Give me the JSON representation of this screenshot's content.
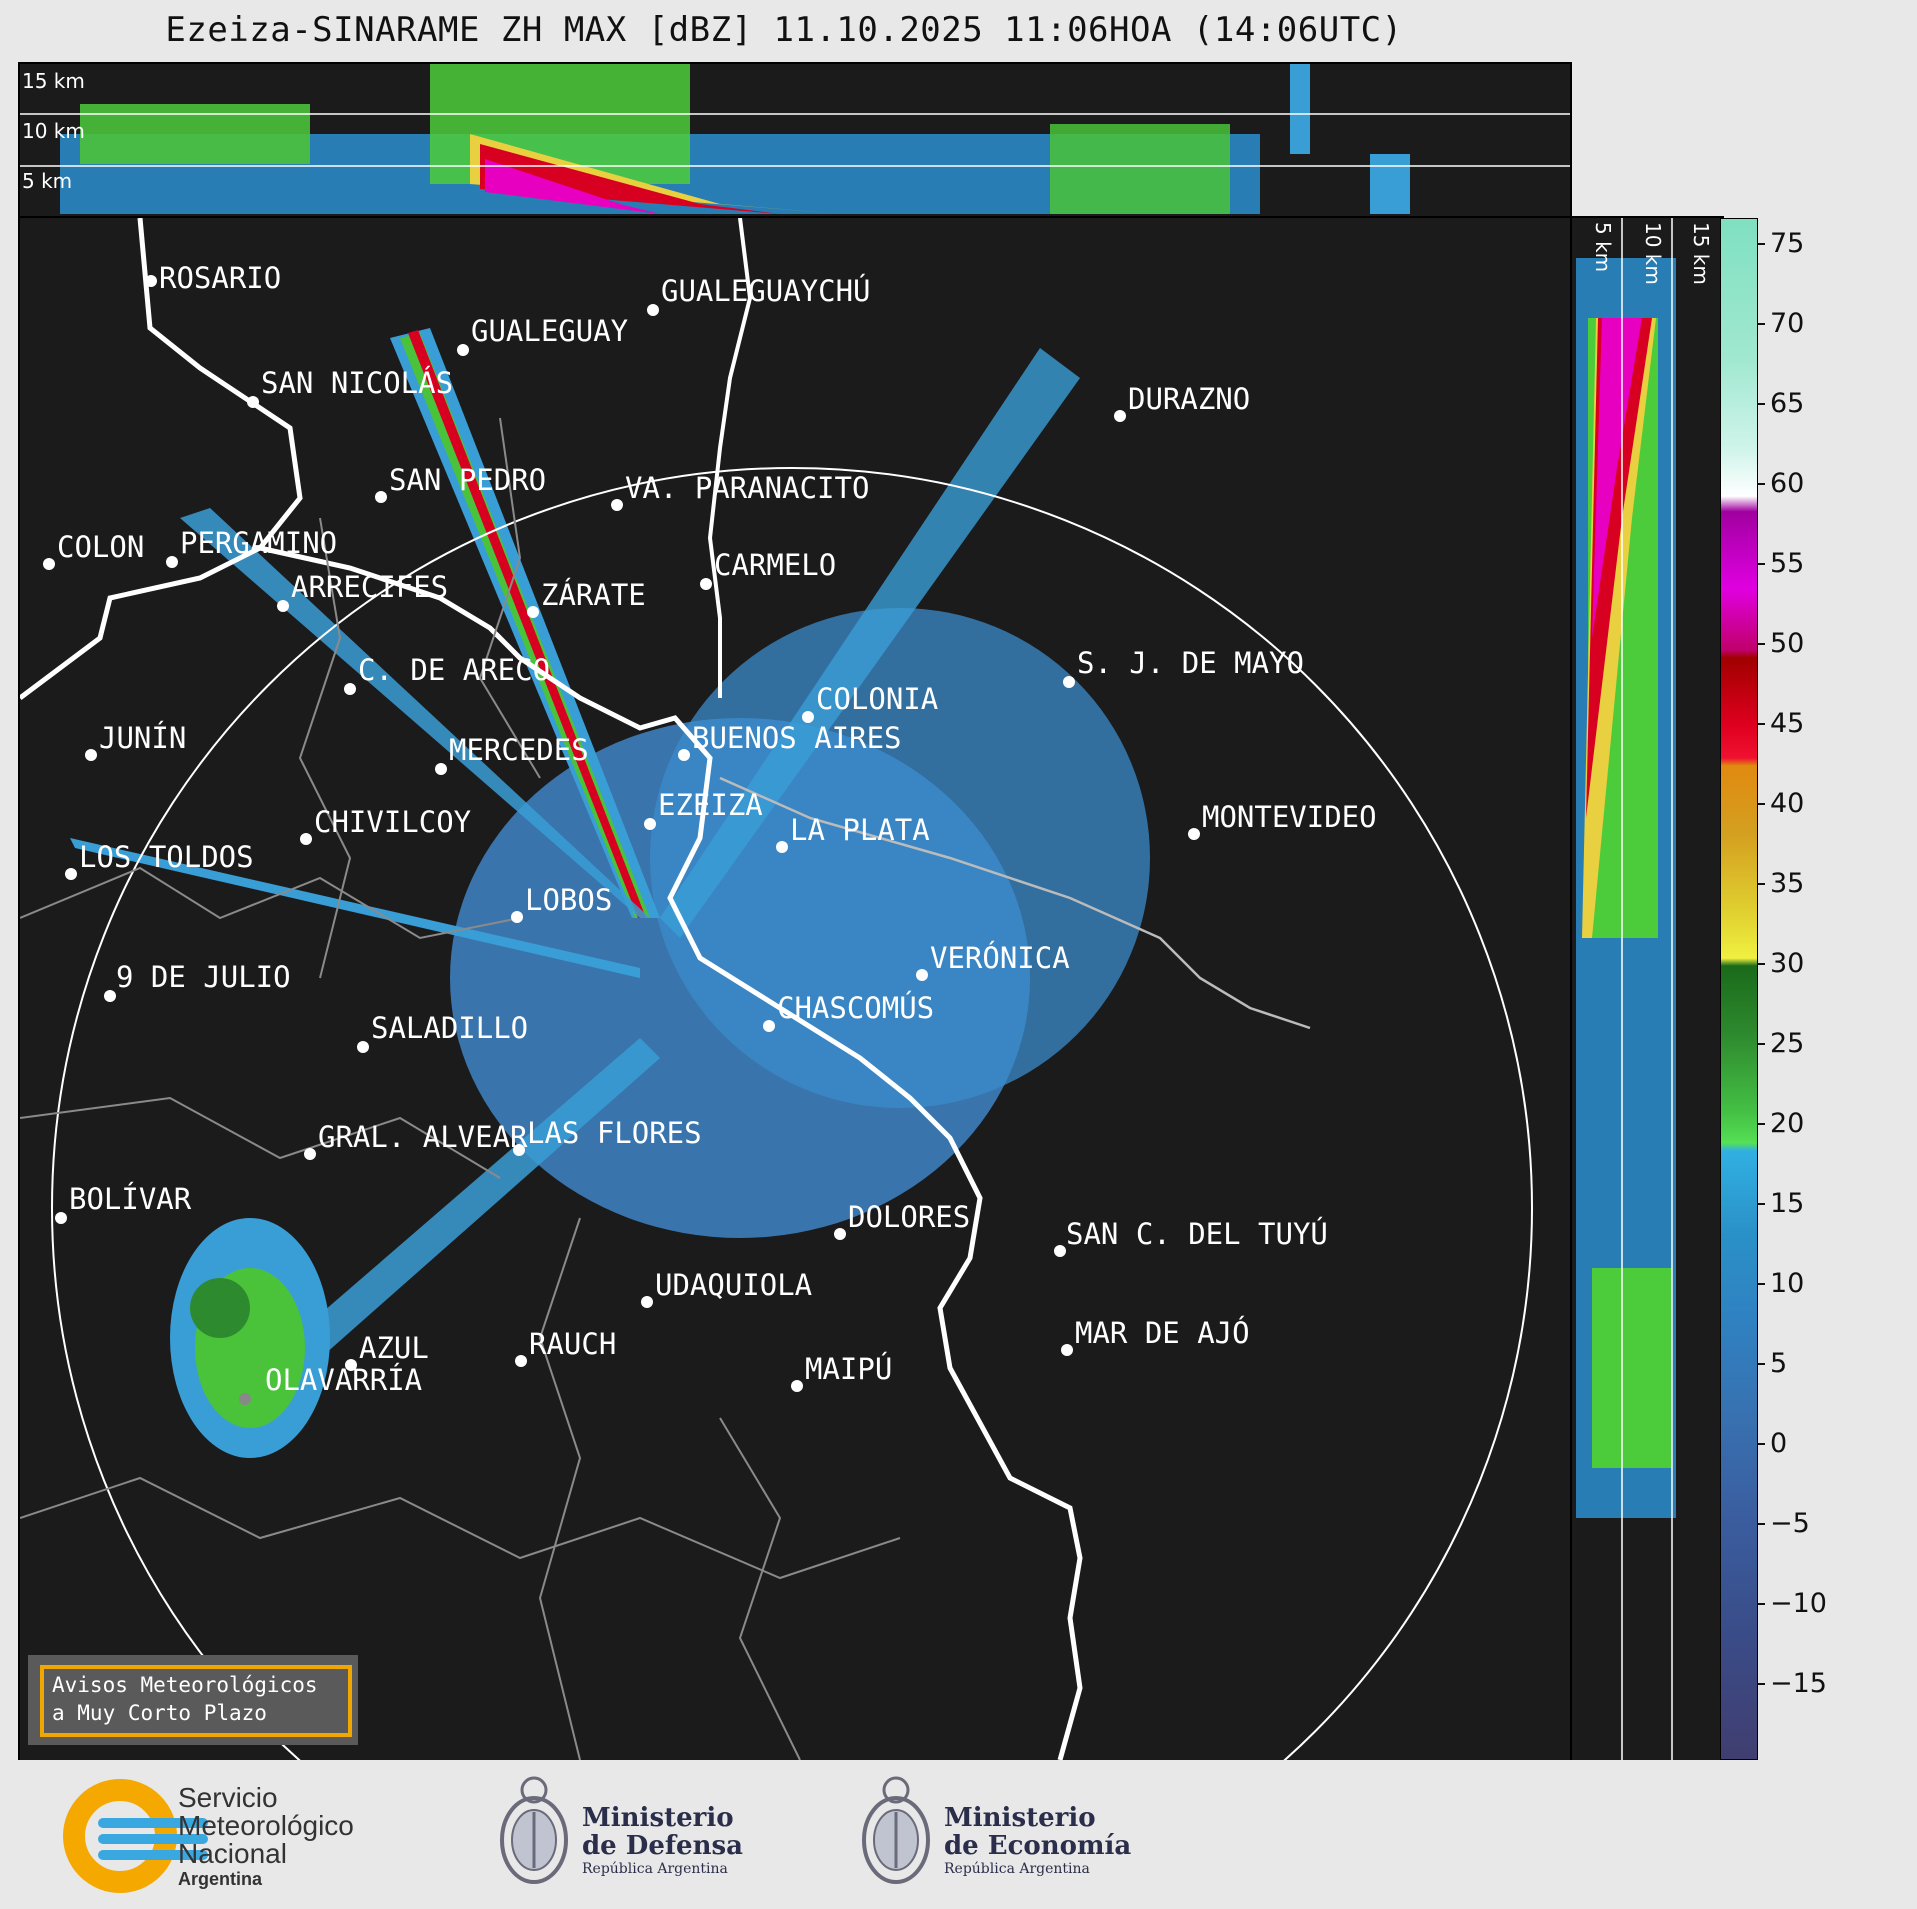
{
  "title": "Ezeiza-SINARAME ZH MAX [dBZ] 11.10.2025 11:06HOA (14:06UTC)",
  "top_panel": {
    "km_labels": [
      "15 km",
      "10 km",
      "5 km"
    ]
  },
  "side_panel": {
    "km_labels": [
      "5 km",
      "10 km",
      "15 km"
    ]
  },
  "colorbar": {
    "ticks": [
      "75",
      "70",
      "65",
      "60",
      "55",
      "50",
      "45",
      "40",
      "35",
      "30",
      "25",
      "20",
      "15",
      "10",
      "5",
      "0",
      "−5",
      "−10",
      "−15"
    ]
  },
  "cities": [
    {
      "name": "ROSARIO"
    },
    {
      "name": "GUALEGUAYCHÚ"
    },
    {
      "name": "GUALEGUAY"
    },
    {
      "name": "SAN NICOLÁS"
    },
    {
      "name": "DURAZNO"
    },
    {
      "name": "SAN PEDRO"
    },
    {
      "name": "VA. PARANACITO"
    },
    {
      "name": "COLON"
    },
    {
      "name": "PERGAMINO"
    },
    {
      "name": "CARMELO"
    },
    {
      "name": "ARRECIFES"
    },
    {
      "name": "ZÁRATE"
    },
    {
      "name": "S. J. DE MAYO"
    },
    {
      "name": "C. DE ARECO"
    },
    {
      "name": "COLONIA"
    },
    {
      "name": "JUNÍN"
    },
    {
      "name": "BUENOS AIRES"
    },
    {
      "name": "MERCEDES"
    },
    {
      "name": "EZEIZA"
    },
    {
      "name": "MONTEVIDEO"
    },
    {
      "name": "CHIVILCOY"
    },
    {
      "name": "LA PLATA"
    },
    {
      "name": "LOS TOLDOS"
    },
    {
      "name": "LOBOS"
    },
    {
      "name": "VERÓNICA"
    },
    {
      "name": "9 DE JULIO"
    },
    {
      "name": "CHASCOMÚS"
    },
    {
      "name": "SALADILLO"
    },
    {
      "name": "GRAL. ALVEAR"
    },
    {
      "name": "LAS FLORES"
    },
    {
      "name": "BOLÍVAR"
    },
    {
      "name": "DOLORES"
    },
    {
      "name": "SAN C. DEL TUYÚ"
    },
    {
      "name": "UDAQUIOLA"
    },
    {
      "name": "AZUL"
    },
    {
      "name": "RAUCH"
    },
    {
      "name": "MAR DE AJÓ"
    },
    {
      "name": "OLAVARRÍA"
    },
    {
      "name": "MAIPÚ"
    }
  ],
  "warning_box": {
    "line1": "Avisos Meteorológicos",
    "line2": "a Muy Corto Plazo"
  },
  "footer": {
    "smn": {
      "line1": "Servicio",
      "line2": "Meteorológico",
      "line3": "Nacional",
      "line4": "Argentina"
    },
    "defensa": {
      "line1": "Ministerio",
      "line2": "de Defensa",
      "line3": "República Argentina"
    },
    "economia": {
      "line1": "Ministerio",
      "line2": "de Economía",
      "line3": "República Argentina"
    }
  }
}
